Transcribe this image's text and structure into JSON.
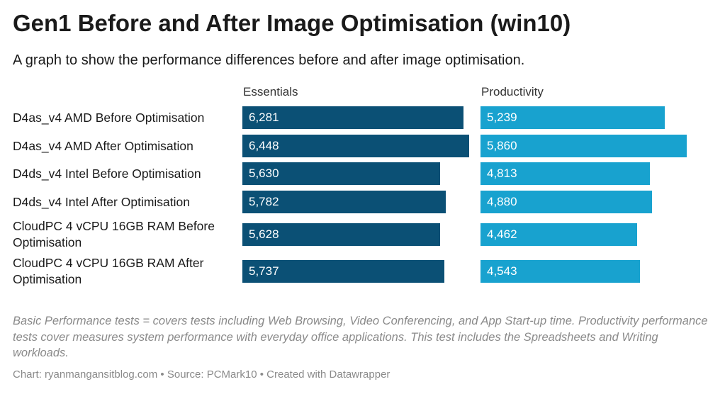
{
  "title": "Gen1 Before and After Image Optimisation (win10)",
  "subtitle": "A graph to show the performance differences before and after image optimisation.",
  "notes": "Basic Performance tests = covers tests including Web Browsing, Video Conferencing, and App Start-up time. Productivity performance tests cover measures system performance with everyday office applications. This test includes the Spreadsheets and Writing workloads.",
  "footer": "Chart: ryanmangansitblog.com • Source: PCMark10 • Created with Datawrapper",
  "colors": {
    "essentials": "#0b5075",
    "productivity": "#18a2cf"
  },
  "chart_data": {
    "type": "bar",
    "orientation": "horizontal",
    "title": "Gen1 Before and After Image Optimisation (win10)",
    "subtitle": "A graph to show the performance differences before and after image optimisation.",
    "categories": [
      "D4as_v4 AMD Before Optimisation",
      "D4as_v4 AMD After Optimisation",
      "D4ds_v4 Intel Before Optimisation",
      "D4ds_v4 Intel After Optimisation",
      "CloudPC 4 vCPU 16GB RAM Before Optimisation",
      "CloudPC 4 vCPU 16GB RAM After Optimisation"
    ],
    "series": [
      {
        "name": "Essentials",
        "values": [
          6281,
          6448,
          5630,
          5782,
          5628,
          5737
        ],
        "labels": [
          "6,281",
          "6,448",
          "5,630",
          "5,782",
          "5,628",
          "5,737"
        ]
      },
      {
        "name": "Productivity",
        "values": [
          5239,
          5860,
          4813,
          4880,
          4462,
          4543
        ],
        "labels": [
          "5,239",
          "5,860",
          "4,813",
          "4,880",
          "4,462",
          "4,543"
        ]
      }
    ],
    "grid": false,
    "legend": "column headers"
  }
}
